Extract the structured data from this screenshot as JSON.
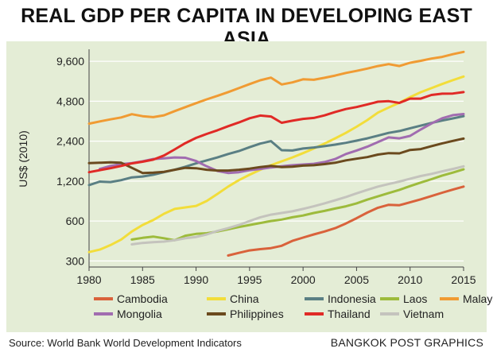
{
  "title": "REAL GDP PER CAPITA IN DEVELOPING EAST ASIA",
  "source": "Source: World Bank World Development Indicators",
  "credit": "BANGKOK POST GRAPHICS",
  "chart_data": {
    "type": "line",
    "title": "REAL GDP PER CAPITA IN DEVELOPING EAST ASIA",
    "xlabel": "",
    "ylabel": "US$ (2010)",
    "y_scale": "log",
    "xlim": [
      1980,
      2015
    ],
    "ylim": [
      270,
      11500
    ],
    "x_ticks": [
      1980,
      1985,
      1990,
      1995,
      2000,
      2005,
      2010,
      2015
    ],
    "x_tick_labels": [
      "1980",
      "1985",
      "1990",
      "1995",
      "2000",
      "2005",
      "2010",
      "2015"
    ],
    "y_ticks": [
      300,
      600,
      1200,
      2400,
      4800,
      9600
    ],
    "y_tick_labels": [
      "300",
      "600",
      "1,200",
      "2,400",
      "4,800",
      "9,600"
    ],
    "grid": "horizontal",
    "legend_position": "bottom",
    "series": [
      {
        "name": "Cambodia",
        "color": "#d9623b",
        "points": [
          [
            1993,
            330
          ],
          [
            1994,
            345
          ],
          [
            1995,
            360
          ],
          [
            1996,
            368
          ],
          [
            1997,
            375
          ],
          [
            1998,
            390
          ],
          [
            1999,
            425
          ],
          [
            2000,
            450
          ],
          [
            2001,
            475
          ],
          [
            2002,
            500
          ],
          [
            2003,
            530
          ],
          [
            2004,
            575
          ],
          [
            2005,
            630
          ],
          [
            2006,
            695
          ],
          [
            2007,
            755
          ],
          [
            2008,
            795
          ],
          [
            2009,
            790
          ],
          [
            2010,
            830
          ],
          [
            2011,
            875
          ],
          [
            2012,
            925
          ],
          [
            2013,
            980
          ],
          [
            2014,
            1035
          ],
          [
            2015,
            1090
          ]
        ]
      },
      {
        "name": "China",
        "color": "#f2dd3a",
        "points": [
          [
            1980,
            350
          ],
          [
            1981,
            365
          ],
          [
            1982,
            395
          ],
          [
            1983,
            435
          ],
          [
            1984,
            500
          ],
          [
            1985,
            560
          ],
          [
            1986,
            610
          ],
          [
            1987,
            680
          ],
          [
            1988,
            740
          ],
          [
            1989,
            760
          ],
          [
            1990,
            780
          ],
          [
            1991,
            850
          ],
          [
            1992,
            960
          ],
          [
            1993,
            1090
          ],
          [
            1994,
            1220
          ],
          [
            1995,
            1340
          ],
          [
            1996,
            1460
          ],
          [
            1997,
            1580
          ],
          [
            1998,
            1690
          ],
          [
            1999,
            1810
          ],
          [
            2000,
            1950
          ],
          [
            2001,
            2110
          ],
          [
            2002,
            2300
          ],
          [
            2003,
            2520
          ],
          [
            2004,
            2770
          ],
          [
            2005,
            3080
          ],
          [
            2006,
            3460
          ],
          [
            2007,
            3940
          ],
          [
            2008,
            4300
          ],
          [
            2009,
            4680
          ],
          [
            2010,
            5150
          ],
          [
            2011,
            5610
          ],
          [
            2012,
            6020
          ],
          [
            2013,
            6470
          ],
          [
            2014,
            6910
          ],
          [
            2015,
            7370
          ]
        ]
      },
      {
        "name": "Indonesia",
        "color": "#5a7f84",
        "points": [
          [
            1980,
            1120
          ],
          [
            1981,
            1190
          ],
          [
            1982,
            1180
          ],
          [
            1983,
            1220
          ],
          [
            1984,
            1280
          ],
          [
            1985,
            1300
          ],
          [
            1986,
            1340
          ],
          [
            1987,
            1400
          ],
          [
            1988,
            1460
          ],
          [
            1989,
            1540
          ],
          [
            1990,
            1630
          ],
          [
            1991,
            1720
          ],
          [
            1992,
            1810
          ],
          [
            1993,
            1920
          ],
          [
            1994,
            2020
          ],
          [
            1995,
            2160
          ],
          [
            1996,
            2300
          ],
          [
            1997,
            2400
          ],
          [
            1998,
            2050
          ],
          [
            1999,
            2040
          ],
          [
            2000,
            2110
          ],
          [
            2001,
            2150
          ],
          [
            2002,
            2200
          ],
          [
            2003,
            2260
          ],
          [
            2004,
            2330
          ],
          [
            2005,
            2420
          ],
          [
            2006,
            2520
          ],
          [
            2007,
            2640
          ],
          [
            2008,
            2770
          ],
          [
            2009,
            2860
          ],
          [
            2010,
            3000
          ],
          [
            2011,
            3140
          ],
          [
            2012,
            3290
          ],
          [
            2013,
            3430
          ],
          [
            2014,
            3560
          ],
          [
            2015,
            3700
          ]
        ]
      },
      {
        "name": "Laos",
        "color": "#9dbb3c",
        "points": [
          [
            1984,
            435
          ],
          [
            1985,
            448
          ],
          [
            1986,
            458
          ],
          [
            1987,
            445
          ],
          [
            1988,
            430
          ],
          [
            1989,
            465
          ],
          [
            1990,
            480
          ],
          [
            1991,
            485
          ],
          [
            1992,
            500
          ],
          [
            1993,
            520
          ],
          [
            1994,
            540
          ],
          [
            1995,
            560
          ],
          [
            1996,
            580
          ],
          [
            1997,
            600
          ],
          [
            1998,
            615
          ],
          [
            1999,
            640
          ],
          [
            2000,
            660
          ],
          [
            2001,
            690
          ],
          [
            2002,
            715
          ],
          [
            2003,
            745
          ],
          [
            2004,
            775
          ],
          [
            2005,
            815
          ],
          [
            2006,
            870
          ],
          [
            2007,
            920
          ],
          [
            2008,
            975
          ],
          [
            2009,
            1030
          ],
          [
            2010,
            1100
          ],
          [
            2011,
            1170
          ],
          [
            2012,
            1240
          ],
          [
            2013,
            1320
          ],
          [
            2014,
            1390
          ],
          [
            2015,
            1470
          ]
        ]
      },
      {
        "name": "Malaysia",
        "color": "#f09b33",
        "points": [
          [
            1980,
            3250
          ],
          [
            1981,
            3380
          ],
          [
            1982,
            3500
          ],
          [
            1983,
            3620
          ],
          [
            1984,
            3830
          ],
          [
            1985,
            3700
          ],
          [
            1986,
            3640
          ],
          [
            1987,
            3760
          ],
          [
            1988,
            4040
          ],
          [
            1989,
            4330
          ],
          [
            1990,
            4640
          ],
          [
            1991,
            4960
          ],
          [
            1992,
            5270
          ],
          [
            1993,
            5620
          ],
          [
            1994,
            6020
          ],
          [
            1995,
            6460
          ],
          [
            1996,
            6900
          ],
          [
            1997,
            7220
          ],
          [
            1998,
            6420
          ],
          [
            1999,
            6650
          ],
          [
            2000,
            7020
          ],
          [
            2001,
            6960
          ],
          [
            2002,
            7200
          ],
          [
            2003,
            7490
          ],
          [
            2004,
            7840
          ],
          [
            2005,
            8120
          ],
          [
            2006,
            8450
          ],
          [
            2007,
            8840
          ],
          [
            2008,
            9130
          ],
          [
            2009,
            8840
          ],
          [
            2010,
            9350
          ],
          [
            2011,
            9680
          ],
          [
            2012,
            10060
          ],
          [
            2013,
            10360
          ],
          [
            2014,
            10860
          ],
          [
            2015,
            11300
          ]
        ]
      },
      {
        "name": "Mongolia",
        "color": "#a16cb0",
        "points": [
          [
            1981,
            1480
          ],
          [
            1982,
            1560
          ],
          [
            1983,
            1610
          ],
          [
            1984,
            1640
          ],
          [
            1985,
            1690
          ],
          [
            1986,
            1760
          ],
          [
            1987,
            1780
          ],
          [
            1988,
            1810
          ],
          [
            1989,
            1800
          ],
          [
            1990,
            1700
          ],
          [
            1991,
            1550
          ],
          [
            1992,
            1430
          ],
          [
            1993,
            1380
          ],
          [
            1994,
            1400
          ],
          [
            1995,
            1450
          ],
          [
            1996,
            1480
          ],
          [
            1997,
            1520
          ],
          [
            1998,
            1550
          ],
          [
            1999,
            1580
          ],
          [
            2000,
            1600
          ],
          [
            2001,
            1620
          ],
          [
            2002,
            1670
          ],
          [
            2003,
            1760
          ],
          [
            2004,
            1920
          ],
          [
            2005,
            2040
          ],
          [
            2006,
            2180
          ],
          [
            2007,
            2360
          ],
          [
            2008,
            2560
          ],
          [
            2009,
            2520
          ],
          [
            2010,
            2630
          ],
          [
            2011,
            2940
          ],
          [
            2012,
            3260
          ],
          [
            2013,
            3570
          ],
          [
            2014,
            3770
          ],
          [
            2015,
            3840
          ]
        ]
      },
      {
        "name": "Philippines",
        "color": "#6b4a1e",
        "points": [
          [
            1980,
            1640
          ],
          [
            1981,
            1650
          ],
          [
            1982,
            1660
          ],
          [
            1983,
            1650
          ],
          [
            1984,
            1510
          ],
          [
            1985,
            1380
          ],
          [
            1986,
            1390
          ],
          [
            1987,
            1410
          ],
          [
            1988,
            1460
          ],
          [
            1989,
            1510
          ],
          [
            1990,
            1500
          ],
          [
            1991,
            1460
          ],
          [
            1992,
            1440
          ],
          [
            1993,
            1440
          ],
          [
            1994,
            1460
          ],
          [
            1995,
            1490
          ],
          [
            1996,
            1530
          ],
          [
            1997,
            1560
          ],
          [
            1998,
            1530
          ],
          [
            1999,
            1540
          ],
          [
            2000,
            1570
          ],
          [
            2001,
            1580
          ],
          [
            2002,
            1610
          ],
          [
            2003,
            1650
          ],
          [
            2004,
            1720
          ],
          [
            2005,
            1770
          ],
          [
            2006,
            1820
          ],
          [
            2007,
            1900
          ],
          [
            2008,
            1950
          ],
          [
            2009,
            1940
          ],
          [
            2010,
            2060
          ],
          [
            2011,
            2090
          ],
          [
            2012,
            2200
          ],
          [
            2013,
            2310
          ],
          [
            2014,
            2410
          ],
          [
            2015,
            2510
          ]
        ]
      },
      {
        "name": "Thailand",
        "color": "#e02a26",
        "points": [
          [
            1980,
            1400
          ],
          [
            1981,
            1450
          ],
          [
            1982,
            1500
          ],
          [
            1983,
            1560
          ],
          [
            1984,
            1630
          ],
          [
            1985,
            1680
          ],
          [
            1986,
            1740
          ],
          [
            1987,
            1870
          ],
          [
            1988,
            2080
          ],
          [
            1989,
            2320
          ],
          [
            1990,
            2540
          ],
          [
            1991,
            2720
          ],
          [
            1992,
            2900
          ],
          [
            1993,
            3110
          ],
          [
            1994,
            3320
          ],
          [
            1995,
            3570
          ],
          [
            1996,
            3740
          ],
          [
            1997,
            3680
          ],
          [
            1998,
            3300
          ],
          [
            1999,
            3420
          ],
          [
            2000,
            3530
          ],
          [
            2001,
            3590
          ],
          [
            2002,
            3750
          ],
          [
            2003,
            3980
          ],
          [
            2004,
            4190
          ],
          [
            2005,
            4340
          ],
          [
            2006,
            4540
          ],
          [
            2007,
            4760
          ],
          [
            2008,
            4800
          ],
          [
            2009,
            4660
          ],
          [
            2010,
            5020
          ],
          [
            2011,
            5020
          ],
          [
            2012,
            5350
          ],
          [
            2013,
            5470
          ],
          [
            2014,
            5480
          ],
          [
            2015,
            5620
          ]
        ]
      },
      {
        "name": "Vietnam",
        "color": "#c4c3bd",
        "points": [
          [
            1984,
            400
          ],
          [
            1985,
            410
          ],
          [
            1986,
            415
          ],
          [
            1987,
            420
          ],
          [
            1988,
            430
          ],
          [
            1989,
            445
          ],
          [
            1990,
            455
          ],
          [
            1991,
            475
          ],
          [
            1992,
            505
          ],
          [
            1993,
            530
          ],
          [
            1994,
            560
          ],
          [
            1995,
            600
          ],
          [
            1996,
            640
          ],
          [
            1997,
            670
          ],
          [
            1998,
            690
          ],
          [
            1999,
            710
          ],
          [
            2000,
            740
          ],
          [
            2001,
            775
          ],
          [
            2002,
            815
          ],
          [
            2003,
            860
          ],
          [
            2004,
            910
          ],
          [
            2005,
            970
          ],
          [
            2006,
            1030
          ],
          [
            2007,
            1090
          ],
          [
            2008,
            1140
          ],
          [
            2009,
            1190
          ],
          [
            2010,
            1250
          ],
          [
            2011,
            1310
          ],
          [
            2012,
            1360
          ],
          [
            2013,
            1420
          ],
          [
            2014,
            1480
          ],
          [
            2015,
            1550
          ]
        ]
      }
    ]
  }
}
